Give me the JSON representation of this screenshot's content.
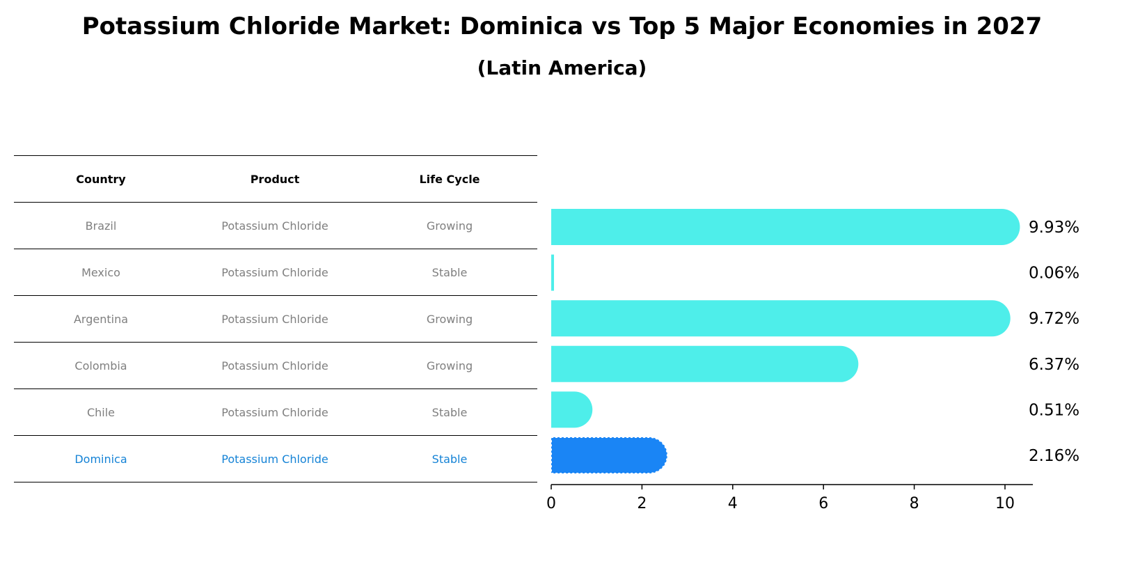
{
  "title": "Potassium Chloride Market: Dominica vs Top 5 Major Economies in 2027",
  "subtitle": "(Latin America)",
  "table": {
    "headers": [
      "Country",
      "Product",
      "Life Cycle"
    ],
    "rows": [
      {
        "country": "Brazil",
        "product": "Potassium Chloride",
        "life_cycle": "Growing"
      },
      {
        "country": "Mexico",
        "product": "Potassium Chloride",
        "life_cycle": "Stable"
      },
      {
        "country": "Argentina",
        "product": "Potassium Chloride",
        "life_cycle": "Growing"
      },
      {
        "country": "Colombia",
        "product": "Potassium Chloride",
        "life_cycle": "Growing"
      },
      {
        "country": "Chile",
        "product": "Potassium Chloride",
        "life_cycle": "Stable"
      },
      {
        "country": "Dominica",
        "product": "Potassium Chloride",
        "life_cycle": "Stable"
      }
    ]
  },
  "colors": {
    "bar": "#4eeeea",
    "highlight_bar": "#1a85f5",
    "highlight_text": "#1583d6",
    "muted_text": "#7f7f7f"
  },
  "chart_data": {
    "type": "bar",
    "orientation": "horizontal",
    "categories": [
      "Brazil",
      "Mexico",
      "Argentina",
      "Colombia",
      "Chile",
      "Dominica"
    ],
    "values": [
      9.93,
      0.06,
      9.72,
      6.37,
      0.51,
      2.16
    ],
    "value_labels": [
      "9.93%",
      "0.06%",
      "9.72%",
      "6.37%",
      "0.51%",
      "2.16%"
    ],
    "highlight": "Dominica",
    "xlim": [
      0,
      10.4
    ],
    "xticks": [
      0,
      2,
      4,
      6,
      8,
      10
    ],
    "xlabel": "",
    "ylabel": ""
  }
}
